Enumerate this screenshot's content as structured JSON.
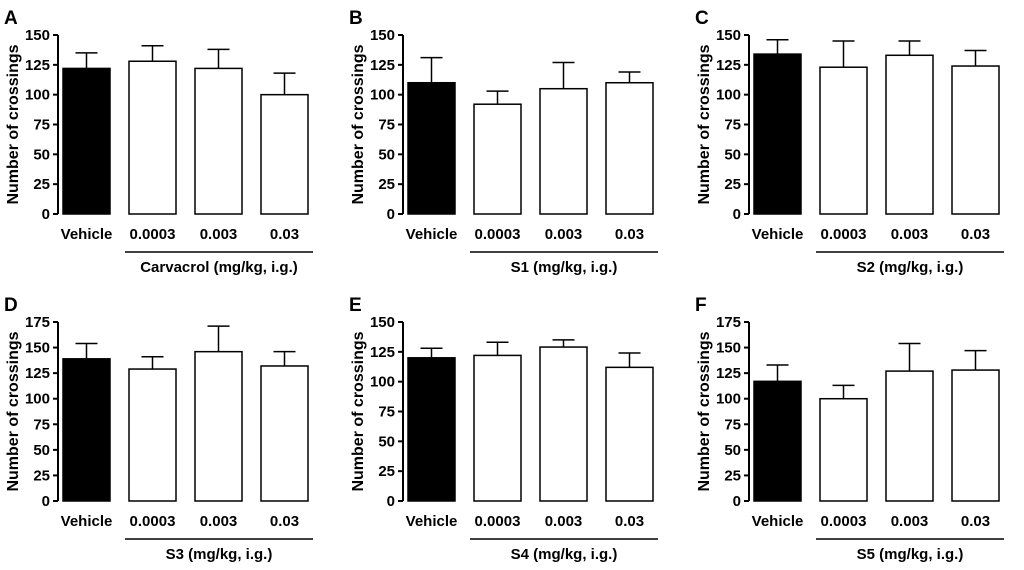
{
  "figure": {
    "colors": {
      "vehicle_fill": "#000000",
      "treatment_fill": "#ffffff",
      "stroke": "#000000"
    }
  },
  "chart_data": [
    {
      "panel": "A",
      "type": "bar",
      "ylabel": "Number of crossings",
      "xlabel": "Carvacrol (mg/kg, i.g.)",
      "ylim": [
        0,
        150
      ],
      "yticks": [
        0,
        25,
        50,
        75,
        100,
        125,
        150
      ],
      "categories": [
        "Vehicle",
        "0.0003",
        "0.003",
        "0.03"
      ],
      "values": [
        122,
        128,
        122,
        100
      ],
      "errors": [
        13,
        13,
        16,
        18
      ]
    },
    {
      "panel": "B",
      "type": "bar",
      "ylabel": "Number of crossings",
      "xlabel": "S1 (mg/kg, i.g.)",
      "ylim": [
        0,
        150
      ],
      "yticks": [
        0,
        25,
        50,
        75,
        100,
        125,
        150
      ],
      "categories": [
        "Vehicle",
        "0.0003",
        "0.003",
        "0.03"
      ],
      "values": [
        110,
        92,
        105,
        110
      ],
      "errors": [
        21,
        11,
        22,
        9
      ]
    },
    {
      "panel": "C",
      "type": "bar",
      "ylabel": "Number of crossings",
      "xlabel": "S2 (mg/kg, i.g.)",
      "ylim": [
        0,
        150
      ],
      "yticks": [
        0,
        25,
        50,
        75,
        100,
        125,
        150
      ],
      "categories": [
        "Vehicle",
        "0.0003",
        "0.003",
        "0.03"
      ],
      "values": [
        134,
        123,
        133,
        124
      ],
      "errors": [
        12,
        22,
        12,
        13
      ]
    },
    {
      "panel": "D",
      "type": "bar",
      "ylabel": "Number of crossings",
      "xlabel": "S3 (mg/kg, i.g.)",
      "ylim": [
        0,
        175
      ],
      "yticks": [
        0,
        25,
        50,
        75,
        100,
        125,
        150,
        175
      ],
      "categories": [
        "Vehicle",
        "0.0003",
        "0.003",
        "0.03"
      ],
      "values": [
        139,
        129,
        146,
        132
      ],
      "errors": [
        15,
        12,
        25,
        14
      ]
    },
    {
      "panel": "E",
      "type": "bar",
      "ylabel": "Number of crossings",
      "xlabel": "S4 (mg/kg, i.g.)",
      "ylim": [
        0,
        150
      ],
      "yticks": [
        0,
        25,
        50,
        75,
        100,
        125,
        150
      ],
      "categories": [
        "Vehicle",
        "0.0003",
        "0.003",
        "0.03"
      ],
      "values": [
        120,
        122,
        129,
        112
      ],
      "errors": [
        8,
        11,
        6,
        12
      ]
    },
    {
      "panel": "F",
      "type": "bar",
      "ylabel": "Number of crossings",
      "xlabel": "S5 (mg/kg, i.g.)",
      "ylim": [
        0,
        175
      ],
      "yticks": [
        0,
        25,
        50,
        75,
        100,
        125,
        150,
        175
      ],
      "categories": [
        "Vehicle",
        "0.0003",
        "0.003",
        "0.03"
      ],
      "values": [
        117,
        100,
        127,
        128
      ],
      "errors": [
        16,
        13,
        27,
        19
      ]
    }
  ]
}
